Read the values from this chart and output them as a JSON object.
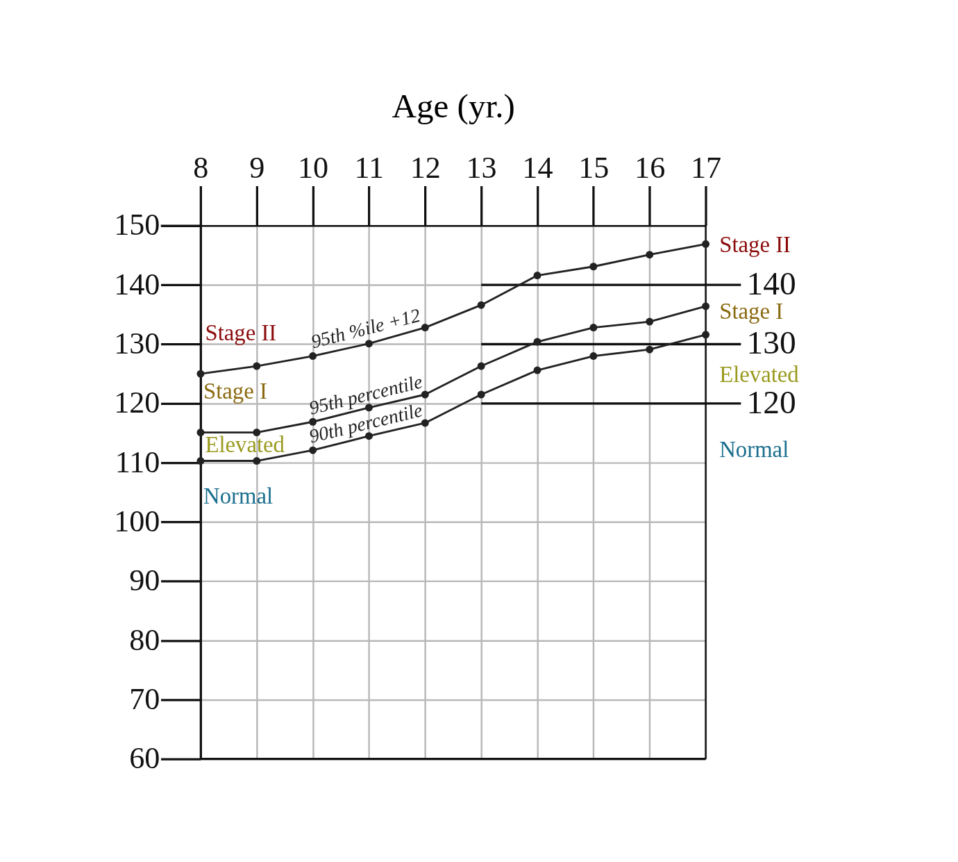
{
  "chart_data": {
    "type": "line",
    "xlabel": "Age (yr.)",
    "x": [
      8,
      9,
      10,
      11,
      12,
      13,
      14,
      15,
      16,
      17
    ],
    "series": [
      {
        "name": "95th %ile +12",
        "color": "#222222",
        "values": [
          125,
          126.3,
          128,
          130.1,
          132.8,
          136.6,
          141.6,
          143.1,
          145.1,
          146.9
        ]
      },
      {
        "name": "95th percentile",
        "color": "#222222",
        "values": [
          115.1,
          115.1,
          116.9,
          119.3,
          121.5,
          126.3,
          130.4,
          132.8,
          133.8,
          136.4
        ]
      },
      {
        "name": "90th percentile",
        "color": "#222222",
        "values": [
          110.3,
          110.3,
          112.1,
          114.5,
          116.7,
          121.5,
          125.6,
          128,
          129.1,
          131.6
        ]
      }
    ],
    "xlim": [
      8,
      17
    ],
    "ylim": [
      60,
      150
    ],
    "xticks": [
      8,
      9,
      10,
      11,
      12,
      13,
      14,
      15,
      16,
      17
    ],
    "yticks": [
      60,
      70,
      80,
      90,
      100,
      110,
      120,
      130,
      140,
      150
    ],
    "ref_lines": [
      {
        "axis": "y",
        "value": 140,
        "label": "140",
        "color": "#111111"
      },
      {
        "axis": "y",
        "value": 130,
        "label": "130",
        "color": "#111111"
      },
      {
        "axis": "y",
        "value": 120,
        "label": "120",
        "color": "#111111"
      }
    ],
    "annotations": [
      "Stage II",
      "Stage I",
      "Elevated",
      "Normal",
      "Stage II",
      "Stage I",
      "Elevated",
      "Normal"
    ],
    "grid": true,
    "marker": "circle",
    "line_style": "solid"
  }
}
